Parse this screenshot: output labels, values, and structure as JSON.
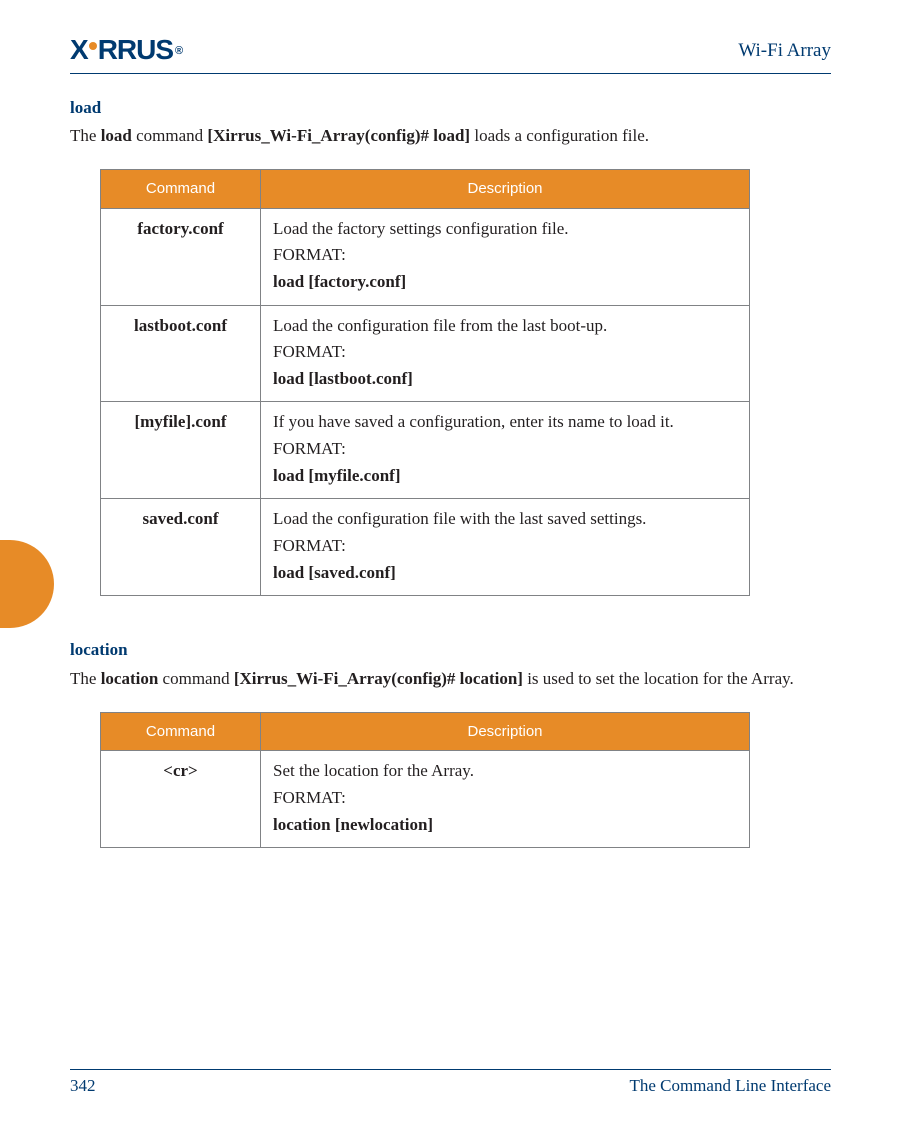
{
  "brand": {
    "name": "XIRRUS",
    "reg": "®"
  },
  "header": {
    "doc_title": "Wi-Fi Array"
  },
  "colors": {
    "accent_orange": "#e78b27",
    "brand_blue": "#003a70",
    "border_gray": "#808285",
    "text": "#231f20",
    "white": "#ffffff"
  },
  "section_load": {
    "title": "load",
    "intro_parts": {
      "p1": "The ",
      "b1": "load",
      "p2": " command ",
      "b2": "[Xirrus_Wi-Fi_Array(config)# load]",
      "p3": " loads a configuration file."
    },
    "table": {
      "headers": {
        "command": "Command",
        "description": "Description"
      },
      "rows": [
        {
          "cmd": "factory.conf",
          "desc": "Load the factory settings configuration file.",
          "format_label": "FORMAT:",
          "format_cmd": "load [factory.conf]"
        },
        {
          "cmd": "lastboot.conf",
          "desc": "Load the configuration file from the last boot-up.",
          "format_label": "FORMAT:",
          "format_cmd": "load [lastboot.conf]"
        },
        {
          "cmd": "[myfile].conf",
          "desc": "If you have saved a configuration, enter its name to load it.",
          "format_label": "FORMAT:",
          "format_cmd": "load [myfile.conf]"
        },
        {
          "cmd": "saved.conf",
          "desc": "Load the configuration file with the last saved settings.",
          "format_label": "FORMAT:",
          "format_cmd": "load [saved.conf]"
        }
      ]
    }
  },
  "section_location": {
    "title": "location",
    "intro_parts": {
      "p1": "The ",
      "b1": "location",
      "p2": " command ",
      "b2": "[Xirrus_Wi-Fi_Array(config)# location]",
      "p3": " is used to set the location for the Array."
    },
    "table": {
      "headers": {
        "command": "Command",
        "description": "Description"
      },
      "rows": [
        {
          "cmd": "<cr>",
          "desc": "Set the location for the Array.",
          "format_label": "FORMAT:",
          "format_cmd": "location [newlocation]"
        }
      ]
    }
  },
  "footer": {
    "page_number": "342",
    "chapter": "The Command Line Interface"
  }
}
